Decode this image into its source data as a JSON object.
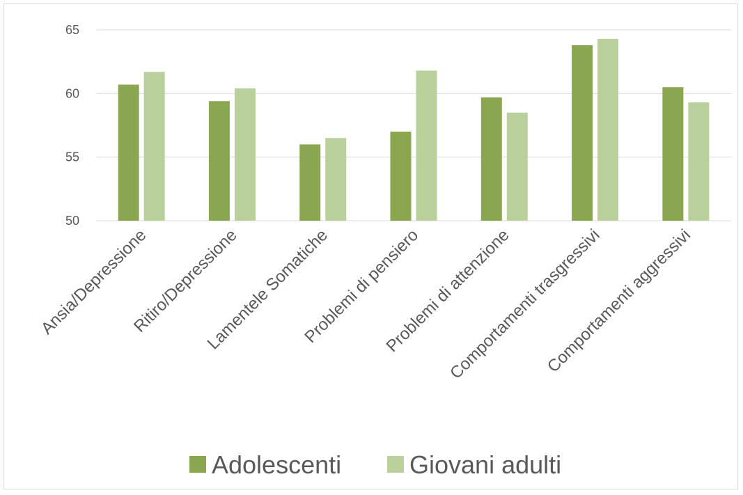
{
  "chart_data": {
    "type": "bar",
    "title": "",
    "xlabel": "",
    "ylabel": "",
    "ylim": [
      50,
      65
    ],
    "yticks": [
      50,
      55,
      60,
      65
    ],
    "grid": true,
    "legend_position": "bottom",
    "categories": [
      "Ansia/Depressione",
      "Ritiro/Depressione",
      "Lamentele Somatiche",
      "Problemi di pensiero",
      "Problemi di attenzione",
      "Comportamenti trasgressivi",
      "Comportamenti aggressivi"
    ],
    "series": [
      {
        "name": "Adolescenti",
        "color": "#8aa650",
        "values": [
          60.7,
          59.4,
          56.0,
          57.0,
          59.7,
          63.8,
          60.5
        ]
      },
      {
        "name": "Giovani adulti",
        "color": "#b9d09a",
        "values": [
          61.7,
          60.4,
          56.5,
          61.8,
          58.5,
          64.3,
          59.3
        ]
      }
    ]
  }
}
